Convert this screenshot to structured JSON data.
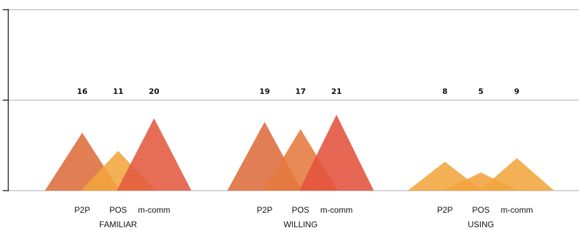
{
  "chart_data": {
    "type": "area",
    "title": "",
    "xlabel": "",
    "ylabel": "",
    "ylim": [
      0,
      50
    ],
    "y_ticks": [
      0,
      25,
      50
    ],
    "grid": true,
    "legend": "none",
    "groups": [
      {
        "name": "FAMILIAR",
        "items": [
          {
            "label": "P2P",
            "value": 16,
            "color": "#de6c3c"
          },
          {
            "label": "POS",
            "value": 11,
            "color": "#f1a53c"
          },
          {
            "label": "m-comm",
            "value": 20,
            "color": "#e25a3f"
          }
        ]
      },
      {
        "name": "WILLING",
        "items": [
          {
            "label": "P2P",
            "value": 19,
            "color": "#de6c3c"
          },
          {
            "label": "POS",
            "value": 17,
            "color": "#e57a3e"
          },
          {
            "label": "m-comm",
            "value": 21,
            "color": "#e4523e"
          }
        ]
      },
      {
        "name": "USING",
        "items": [
          {
            "label": "P2P",
            "value": 8,
            "color": "#f1a53c"
          },
          {
            "label": "POS",
            "value": 5,
            "color": "#f3a13d"
          },
          {
            "label": "m-comm",
            "value": 9,
            "color": "#f1a53c"
          }
        ]
      }
    ]
  }
}
